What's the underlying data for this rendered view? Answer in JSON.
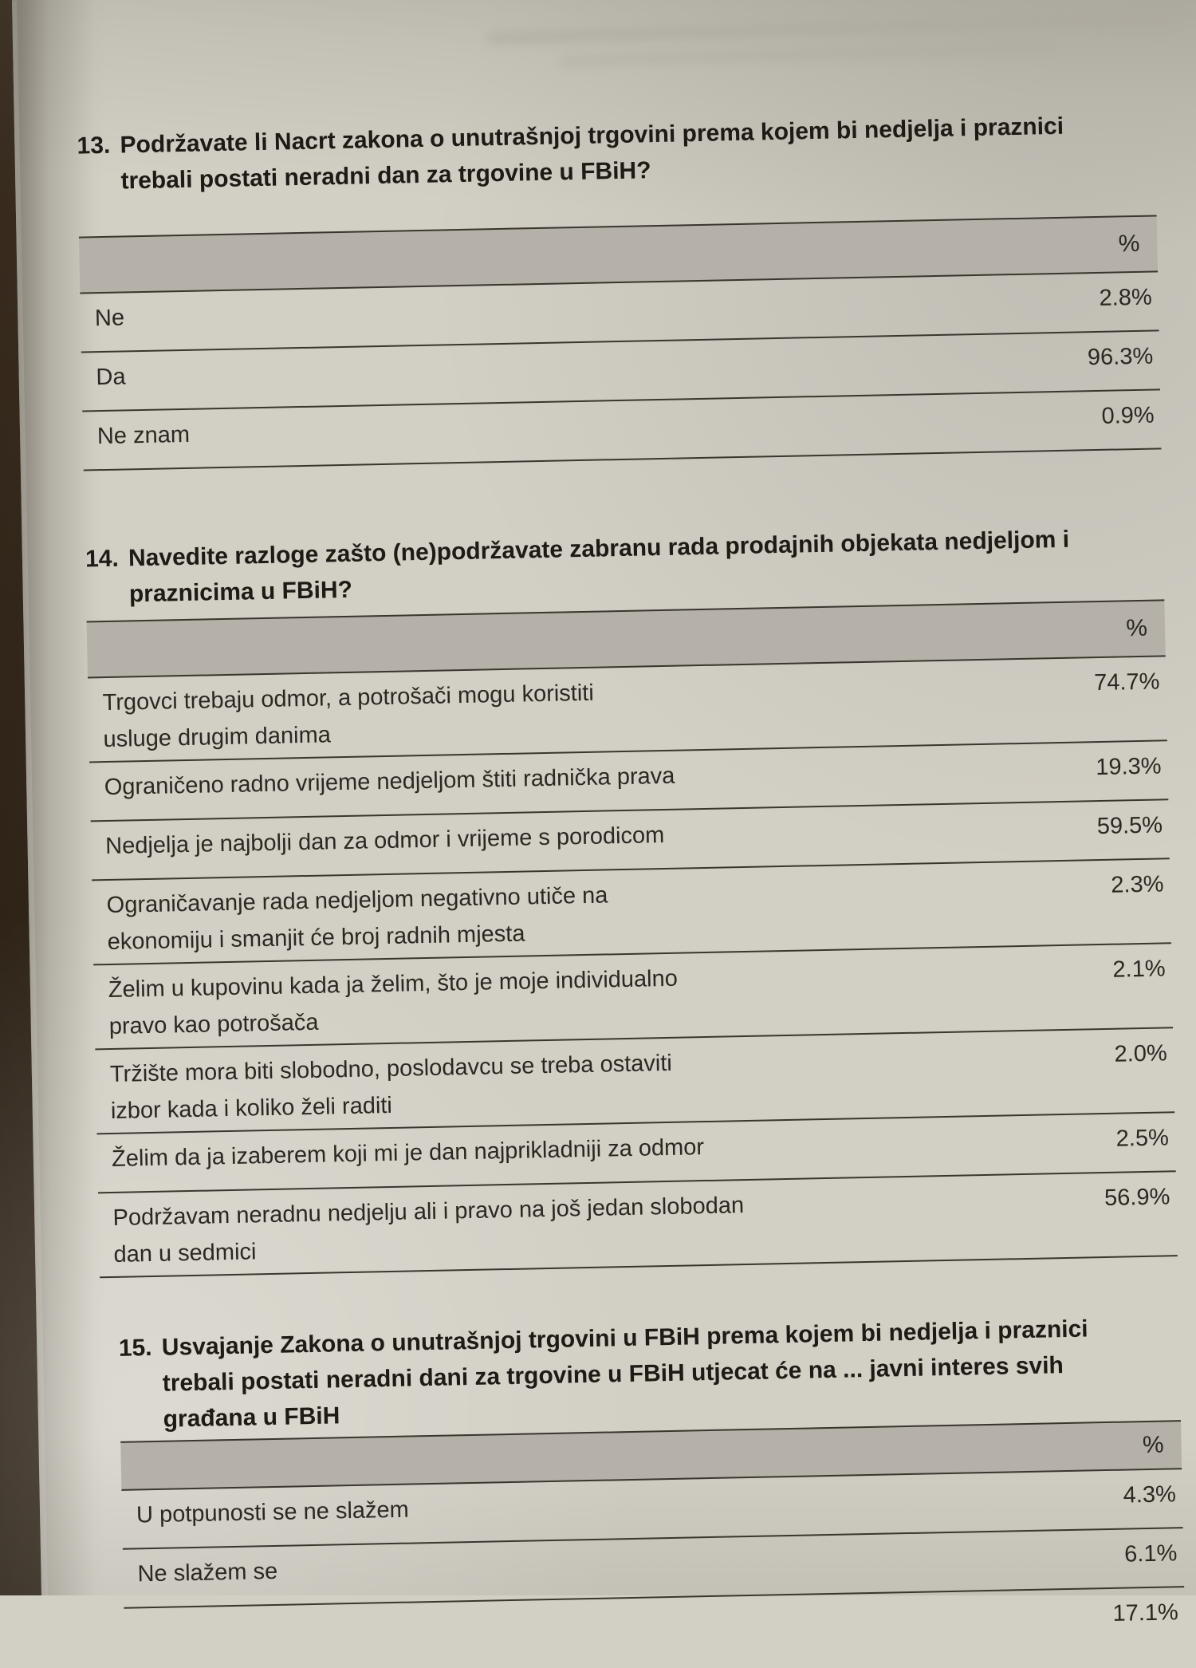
{
  "page": {
    "questions": [
      {
        "number": "13.",
        "text_lines": [
          "Podržavate li Nacrt zakona o unutrašnjoj trgovini prema kojem bi nedjelja i praznici",
          "trebali postati neradni dan za trgovine u FBiH?"
        ],
        "table": {
          "header": "%",
          "rows": [
            {
              "label_lines": [
                "Ne"
              ],
              "value": "2.8%"
            },
            {
              "label_lines": [
                "Da"
              ],
              "value": "96.3%"
            },
            {
              "label_lines": [
                "Ne znam"
              ],
              "value": "0.9%"
            }
          ]
        }
      },
      {
        "number": "14.",
        "text_lines": [
          "Navedite razloge zašto (ne)podržavate zabranu rada prodajnih objekata nedjeljom i",
          "praznicima u FBiH?"
        ],
        "table": {
          "header": "%",
          "rows": [
            {
              "label_lines": [
                "Trgovci trebaju odmor, a potrošači mogu koristiti",
                "usluge drugim danima"
              ],
              "value": "74.7%"
            },
            {
              "label_lines": [
                "Ograničeno radno vrijeme nedjeljom štiti radnička prava"
              ],
              "value": "19.3%"
            },
            {
              "label_lines": [
                "Nedjelja je najbolji dan za odmor i vrijeme s porodicom"
              ],
              "value": "59.5%"
            },
            {
              "label_lines": [
                "Ograničavanje rada nedjeljom negativno utiče na",
                "ekonomiju i smanjit će broj radnih mjesta"
              ],
              "value": "2.3%"
            },
            {
              "label_lines": [
                "Želim u kupovinu kada ja želim, što je moje individualno",
                "pravo kao potrošača"
              ],
              "value": "2.1%"
            },
            {
              "label_lines": [
                "Tržište mora biti slobodno, poslodavcu se treba ostaviti",
                "izbor kada i koliko želi raditi"
              ],
              "value": "2.0%"
            },
            {
              "label_lines": [
                "Želim da ja izaberem koji mi je dan najprikladniji za odmor"
              ],
              "value": "2.5%"
            },
            {
              "label_lines": [
                "Podržavam neradnu nedjelju ali i pravo na još jedan slobodan",
                "dan u sedmici"
              ],
              "value": "56.9%"
            }
          ]
        }
      },
      {
        "number": "15.",
        "text_lines": [
          "Usvajanje Zakona o unutrašnjoj trgovini u FBiH prema kojem bi nedjelja i praznici",
          "trebali postati neradni dani za trgovine u FBiH utjecat će na ... javni interes svih",
          "građana u FBiH"
        ],
        "table": {
          "header": "%",
          "rows": [
            {
              "label_lines": [
                "U potpunosti se ne slažem"
              ],
              "value": "4.3%"
            },
            {
              "label_lines": [
                "Ne slažem se"
              ],
              "value": "6.1%"
            },
            {
              "label_lines": [],
              "value": "17.1%",
              "partial": true
            }
          ]
        }
      }
    ]
  },
  "colors": {
    "page_background": "#d2cfc5",
    "table_header_band": "#b5b1a8",
    "rule_line": "#3a362f",
    "body_text": "#2b2823",
    "heading_text": "#1e1b16",
    "book_edge": "#3c2d1f"
  }
}
